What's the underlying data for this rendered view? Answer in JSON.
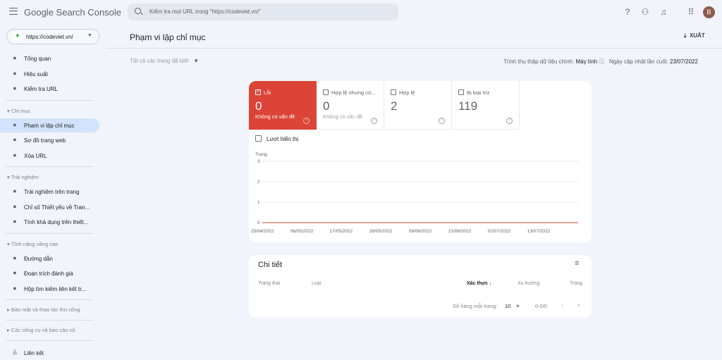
{
  "header": {
    "app_title": "Google Search Console",
    "search_placeholder": "Kiểm tra mọi URL trong \"https://codeviet.vn/\"",
    "avatar_letter": "B",
    "icons": [
      "help-icon",
      "manage-users-icon",
      "bell-icon",
      "apps-icon"
    ]
  },
  "sidebar": {
    "property": "https://codeviet.vn/",
    "items": [
      {
        "label": "Tổng quan",
        "icon": "home-icon"
      },
      {
        "label": "Hiệu suất",
        "icon": "trending-icon"
      },
      {
        "label": "Kiểm tra URL",
        "icon": "search-icon"
      }
    ],
    "sections": [
      {
        "title": "Chỉ mục",
        "items": [
          {
            "label": "Phạm vi lập chỉ mục",
            "icon": "pages-icon",
            "active": true
          },
          {
            "label": "Sơ đồ trang web",
            "icon": "sitemap-icon"
          },
          {
            "label": "Xóa URL",
            "icon": "eye-off-icon"
          }
        ]
      },
      {
        "title": "Trải nghiệm",
        "items": [
          {
            "label": "Trải nghiệm trên trang",
            "icon": "plus-circle-icon"
          },
          {
            "label": "Chỉ số Thiết yếu về Tran...",
            "icon": "gauge-icon"
          },
          {
            "label": "Tính khả dụng trên thiết...",
            "icon": "mobile-icon"
          }
        ]
      },
      {
        "title": "Tính năng nâng cao",
        "items": [
          {
            "label": "Đường dẫn",
            "icon": "layers-icon"
          },
          {
            "label": "Đoạn trích đánh giá",
            "icon": "layers-icon"
          },
          {
            "label": "Hộp tìm kiếm liên kết tr...",
            "icon": "layers-icon"
          }
        ]
      }
    ],
    "collapsed": [
      "Bảo mật và thao tác thủ công",
      "Các công cụ và báo cáo cũ"
    ],
    "bottom_item": "Liên kết"
  },
  "main": {
    "title": "Phạm vi lập chỉ mục",
    "export_label": "XUẤT",
    "filter": "Tất cả các trang đã biết",
    "crawler_label": "Trình thu thập dữ liệu chính:",
    "crawler_value": "Máy tính",
    "updated_label": "Ngày cập nhật lần cuối:",
    "updated_value": "23/07/2022",
    "tabs": [
      {
        "label": "Lỗi",
        "value": "0",
        "sub": "Không có vấn đề",
        "checked": true,
        "color": "#db4437"
      },
      {
        "label": "Hợp lệ nhưng có...",
        "value": "0",
        "sub": "Không có vấn đề",
        "checked": false
      },
      {
        "label": "Hợp lệ",
        "value": "2",
        "sub": "",
        "checked": false
      },
      {
        "label": "Bị loại trừ",
        "value": "119",
        "sub": "",
        "checked": false
      }
    ],
    "impressions_label": "Lượt hiển thị",
    "details": {
      "title": "Chi tiết",
      "columns": [
        "Trạng thái",
        "Loại",
        "Xác thực",
        "Xu hướng",
        "Trang"
      ],
      "rows_per_page_label": "Số hàng mỗi trang:",
      "rows_per_page": "10",
      "range": "0-0/0"
    }
  },
  "chart_data": {
    "type": "line",
    "ylabel": "Trang",
    "yticks": [
      "0",
      "1",
      "2",
      "3"
    ],
    "ylim": [
      0,
      3
    ],
    "grid": true,
    "x": [
      "25/04/2022",
      "06/05/2022",
      "17/05/2022",
      "28/05/2022",
      "09/06/2022",
      "21/06/2022",
      "02/07/2022",
      "13/07/2022"
    ],
    "series": [
      {
        "values": [
          0,
          0,
          0,
          0,
          0,
          0,
          0,
          0
        ],
        "color": "#db4437"
      }
    ]
  }
}
